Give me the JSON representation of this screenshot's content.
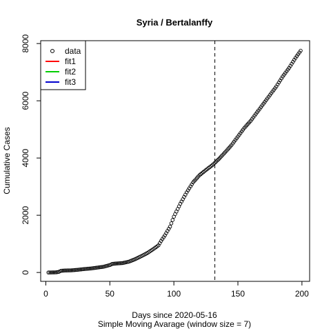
{
  "chart_data": {
    "type": "scatter",
    "title": "Syria / Bertalanffy",
    "xlabel": "Days since 2020-05-16",
    "xlabel2": "Simple Moving Avarage (window size = 7)",
    "ylabel": "Cumulative Cases",
    "xlim": [
      -4,
      206
    ],
    "ylim": [
      -310,
      8100
    ],
    "x_ticks": [
      0,
      50,
      100,
      150,
      200
    ],
    "y_ticks": [
      0,
      2000,
      4000,
      6000,
      8000
    ],
    "vline_x": 132,
    "legend": {
      "position": "top-left",
      "entries": [
        {
          "label": "data",
          "kind": "point",
          "color": "#000000"
        },
        {
          "label": "fit1",
          "kind": "line",
          "color": "#ff0000"
        },
        {
          "label": "fit2",
          "kind": "line",
          "color": "#00cd00"
        },
        {
          "label": "fit3",
          "kind": "line",
          "color": "#0000cd"
        }
      ]
    },
    "anchors": [
      [
        2,
        0
      ],
      [
        8,
        5
      ],
      [
        10,
        20
      ],
      [
        12,
        60
      ],
      [
        15,
        70
      ],
      [
        20,
        75
      ],
      [
        25,
        95
      ],
      [
        30,
        120
      ],
      [
        35,
        140
      ],
      [
        40,
        170
      ],
      [
        45,
        200
      ],
      [
        50,
        260
      ],
      [
        52,
        300
      ],
      [
        55,
        315
      ],
      [
        60,
        330
      ],
      [
        65,
        380
      ],
      [
        70,
        470
      ],
      [
        75,
        580
      ],
      [
        78,
        650
      ],
      [
        80,
        700
      ],
      [
        85,
        850
      ],
      [
        88,
        950
      ],
      [
        90,
        1100
      ],
      [
        93,
        1300
      ],
      [
        95,
        1450
      ],
      [
        97,
        1600
      ],
      [
        100,
        1950
      ],
      [
        105,
        2400
      ],
      [
        110,
        2800
      ],
      [
        115,
        3150
      ],
      [
        120,
        3400
      ],
      [
        125,
        3580
      ],
      [
        130,
        3750
      ],
      [
        135,
        3960
      ],
      [
        140,
        4200
      ],
      [
        145,
        4450
      ],
      [
        150,
        4750
      ],
      [
        155,
        5050
      ],
      [
        160,
        5300
      ],
      [
        165,
        5600
      ],
      [
        170,
        5900
      ],
      [
        175,
        6200
      ],
      [
        180,
        6500
      ],
      [
        185,
        6850
      ],
      [
        190,
        7150
      ],
      [
        195,
        7500
      ],
      [
        199,
        7750
      ]
    ]
  }
}
